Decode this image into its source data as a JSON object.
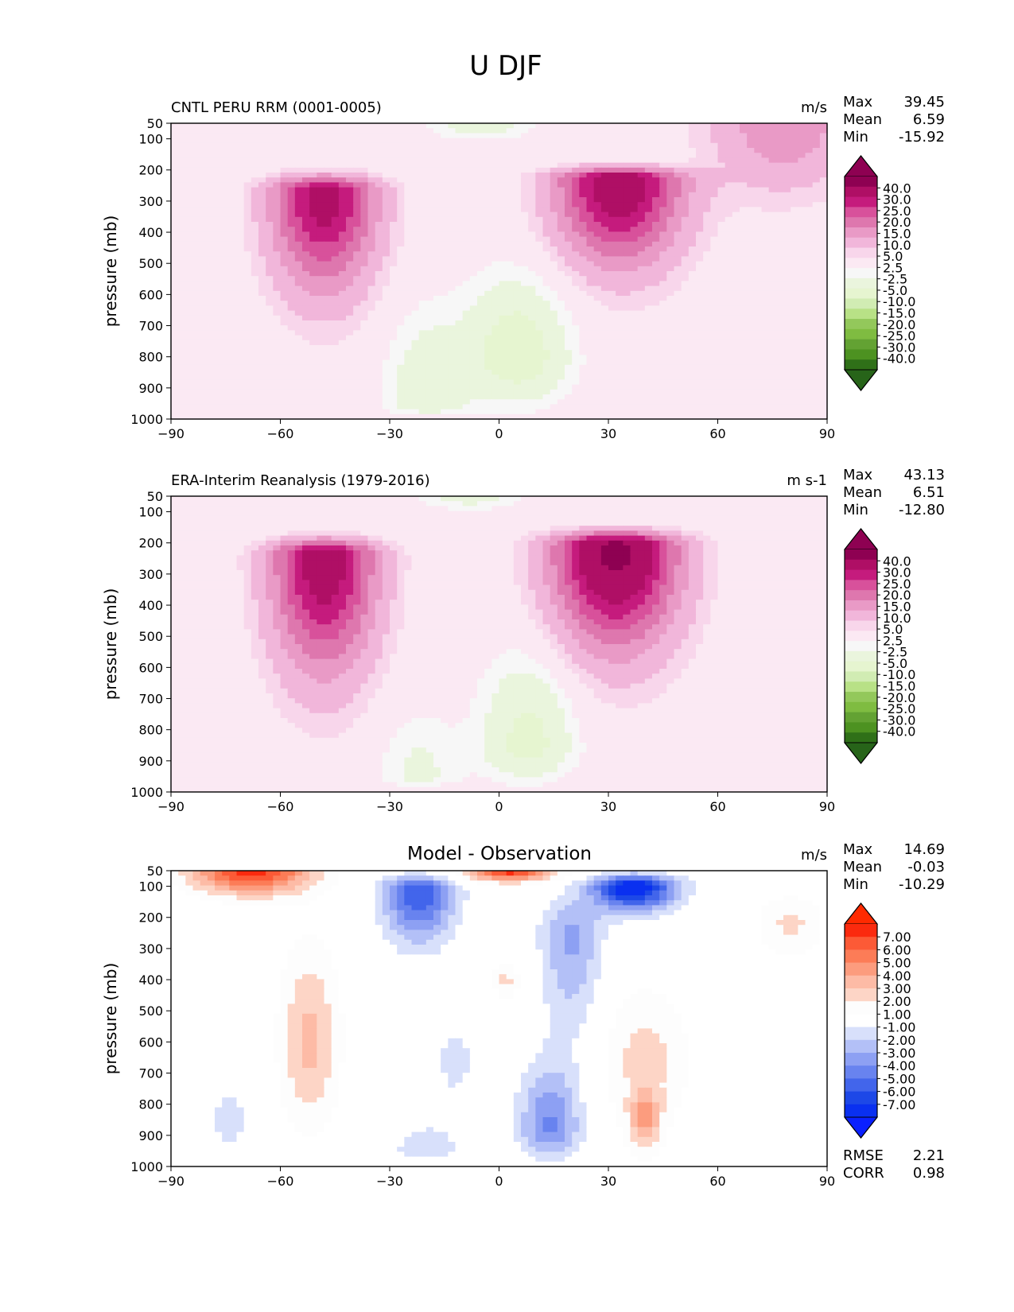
{
  "figure_title": "U DJF",
  "chart_data": [
    {
      "type": "heatmap",
      "subtype": "filled-contour",
      "title_left": "CNTL PERU RRM (0001-0005)",
      "title_center": "",
      "units": "m/s",
      "xlabel": "",
      "ylabel": "pressure (mb)",
      "xlim": [
        -90,
        90
      ],
      "ylim": [
        1000,
        50
      ],
      "x_ticks": [
        "−90",
        "−60",
        "−30",
        "0",
        "30",
        "60",
        "90"
      ],
      "y_ticks": [
        "50",
        "100",
        "200",
        "300",
        "400",
        "500",
        "600",
        "700",
        "800",
        "900",
        "1000"
      ],
      "stats": {
        "max_label": "Max",
        "max": "39.45",
        "mean_label": "Mean",
        "mean": "6.59",
        "min_label": "Min",
        "min": "-15.92"
      },
      "colorbar": {
        "labels": [
          "40.0",
          "30.0",
          "25.0",
          "20.0",
          "15.0",
          "10.0",
          "5.0",
          "2.5",
          "-2.5",
          "-5.0",
          "-10.0",
          "-15.0",
          "-20.0",
          "-25.0",
          "-30.0",
          "-40.0"
        ],
        "colors": [
          "#8e0152",
          "#af0f65",
          "#c51b7d",
          "#d8519b",
          "#de77ae",
          "#e99ac6",
          "#f1b6da",
          "#f8d6eb",
          "#fbe9f3",
          "#f7f7f7",
          "#eaf5dd",
          "#e6f5d0",
          "#d1ecb3",
          "#b8e186",
          "#93c85b",
          "#7fbc41",
          "#63a233",
          "#4d9221",
          "#2f7018"
        ],
        "over": "#8e0152",
        "under": "#276419"
      },
      "jets": [
        {
          "lat": -48,
          "p": 270,
          "peak": 34,
          "lat_width": 10,
          "p_top": 200,
          "p_bottom": 700
        },
        {
          "lat": 33,
          "p": 230,
          "peak": 37,
          "lat_width": 12,
          "p_top": 180,
          "p_bottom": 600
        },
        {
          "lat": 5,
          "p": 800,
          "peak": -14,
          "lat_width": 10,
          "p_top": 450,
          "p_bottom": 1000
        },
        {
          "lat": -20,
          "p": 950,
          "peak": -9,
          "lat_width": 8,
          "p_top": 550,
          "p_bottom": 1000
        },
        {
          "lat": -5,
          "p": 50,
          "peak": -8,
          "lat_width": 10,
          "p_top": 50,
          "p_bottom": 120
        },
        {
          "lat": 78,
          "p": 50,
          "peak": 14,
          "lat_width": 14,
          "p_top": 50,
          "p_bottom": 350
        }
      ]
    },
    {
      "type": "heatmap",
      "subtype": "filled-contour",
      "title_left": "ERA-Interim Reanalysis (1979-2016)",
      "title_center": "",
      "units": "m s-1",
      "xlabel": "",
      "ylabel": "pressure (mb)",
      "xlim": [
        -90,
        90
      ],
      "ylim": [
        1000,
        50
      ],
      "x_ticks": [
        "−90",
        "−60",
        "−30",
        "0",
        "30",
        "60",
        "90"
      ],
      "y_ticks": [
        "50",
        "100",
        "200",
        "300",
        "400",
        "500",
        "600",
        "700",
        "800",
        "900",
        "1000"
      ],
      "stats": {
        "max_label": "Max",
        "max": "43.13",
        "mean_label": "Mean",
        "mean": "6.51",
        "min_label": "Min",
        "min": "-12.80"
      },
      "colorbar": {
        "labels": [
          "40.0",
          "30.0",
          "25.0",
          "20.0",
          "15.0",
          "10.0",
          "5.0",
          "2.5",
          "-2.5",
          "-5.0",
          "-10.0",
          "-15.0",
          "-20.0",
          "-25.0",
          "-30.0",
          "-40.0"
        ],
        "colors": [
          "#8e0152",
          "#af0f65",
          "#c51b7d",
          "#d8519b",
          "#de77ae",
          "#e99ac6",
          "#f1b6da",
          "#f8d6eb",
          "#fbe9f3",
          "#f7f7f7",
          "#eaf5dd",
          "#e6f5d0",
          "#d1ecb3",
          "#b8e186",
          "#93c85b",
          "#7fbc41",
          "#63a233",
          "#4d9221",
          "#2f7018"
        ],
        "over": "#8e0152",
        "under": "#276419"
      },
      "jets": [
        {
          "lat": -48,
          "p": 240,
          "peak": 36,
          "lat_width": 10,
          "p_top": 170,
          "p_bottom": 750
        },
        {
          "lat": 32,
          "p": 210,
          "peak": 43,
          "lat_width": 12,
          "p_top": 150,
          "p_bottom": 650
        },
        {
          "lat": 8,
          "p": 850,
          "peak": -12,
          "lat_width": 9,
          "p_top": 450,
          "p_bottom": 1000
        },
        {
          "lat": -22,
          "p": 950,
          "peak": -6,
          "lat_width": 8,
          "p_top": 650,
          "p_bottom": 1000
        },
        {
          "lat": -8,
          "p": 50,
          "peak": -7,
          "lat_width": 10,
          "p_top": 50,
          "p_bottom": 110
        }
      ]
    },
    {
      "type": "heatmap",
      "subtype": "filled-contour",
      "title_left": "",
      "title_center": "Model - Observation",
      "units": "m/s",
      "xlabel": "",
      "ylabel": "pressure (mb)",
      "xlim": [
        -90,
        90
      ],
      "ylim": [
        1000,
        50
      ],
      "x_ticks": [
        "−90",
        "−60",
        "−30",
        "0",
        "30",
        "60",
        "90"
      ],
      "y_ticks": [
        "50",
        "100",
        "200",
        "300",
        "400",
        "500",
        "600",
        "700",
        "800",
        "900",
        "1000"
      ],
      "stats": {
        "max_label": "Max",
        "max": "14.69",
        "mean_label": "Mean",
        "mean": "-0.03",
        "min_label": "Min",
        "min": "-10.29"
      },
      "extra_stats": {
        "rmse_label": "RMSE",
        "rmse": "2.21",
        "corr_label": "CORR",
        "corr": "0.98"
      },
      "colorbar": {
        "labels": [
          "7.00",
          "6.00",
          "5.00",
          "4.00",
          "3.00",
          "2.00",
          "1.00",
          "-1.00",
          "-2.00",
          "-3.00",
          "-4.00",
          "-5.00",
          "-6.00",
          "-7.00"
        ],
        "colors": [
          "#fb2a0e",
          "#fc5a36",
          "#fc7c57",
          "#fc9c7e",
          "#fdbba6",
          "#fdd5c6",
          "#fdfdfd",
          "#ffffff",
          "#d8e0fb",
          "#b3c0f7",
          "#8da0f3",
          "#6883ef",
          "#4265eb",
          "#1d48e7",
          "#0a30f0"
        ],
        "over": "#ff2a00",
        "under": "#0a20ff"
      },
      "jets": [
        {
          "lat": -68,
          "p": 50,
          "peak": 7.5,
          "lat_width": 12,
          "p_top": 50,
          "p_bottom": 160
        },
        {
          "lat": -52,
          "p": 600,
          "peak": 3.3,
          "lat_width": 6,
          "p_top": 150,
          "p_bottom": 1000
        },
        {
          "lat": 3,
          "p": 50,
          "peak": 7.5,
          "lat_width": 9,
          "p_top": 50,
          "p_bottom": 100
        },
        {
          "lat": 37,
          "p": 100,
          "peak": -8.5,
          "lat_width": 8,
          "p_top": 50,
          "p_bottom": 210
        },
        {
          "lat": -22,
          "p": 110,
          "peak": -6,
          "lat_width": 7,
          "p_top": 50,
          "p_bottom": 340
        },
        {
          "lat": 40,
          "p": 650,
          "peak": 2.4,
          "lat_width": 9,
          "p_top": 320,
          "p_bottom": 1000
        },
        {
          "lat": 40,
          "p": 850,
          "peak": 3.3,
          "lat_width": 3,
          "p_top": 720,
          "p_bottom": 1000
        },
        {
          "lat": 14,
          "p": 880,
          "peak": -4.2,
          "lat_width": 6,
          "p_top": 600,
          "p_bottom": 1000
        },
        {
          "lat": 20,
          "p": 250,
          "peak": -3.2,
          "lat_width": 6,
          "p_top": 100,
          "p_bottom": 700
        },
        {
          "lat": 80,
          "p": 220,
          "peak": 2.2,
          "lat_width": 7,
          "p_top": 80,
          "p_bottom": 380
        },
        {
          "lat": -20,
          "p": 950,
          "peak": -1.5,
          "lat_width": 8,
          "p_top": 800,
          "p_bottom": 1000
        },
        {
          "lat": -74,
          "p": 850,
          "peak": -1.5,
          "lat_width": 4,
          "p_top": 700,
          "p_bottom": 1000
        },
        {
          "lat": 2,
          "p": 400,
          "peak": 2.2,
          "lat_width": 3,
          "p_top": 320,
          "p_bottom": 500
        },
        {
          "lat": -12,
          "p": 650,
          "peak": -1.5,
          "lat_width": 4,
          "p_top": 500,
          "p_bottom": 850
        }
      ]
    }
  ]
}
